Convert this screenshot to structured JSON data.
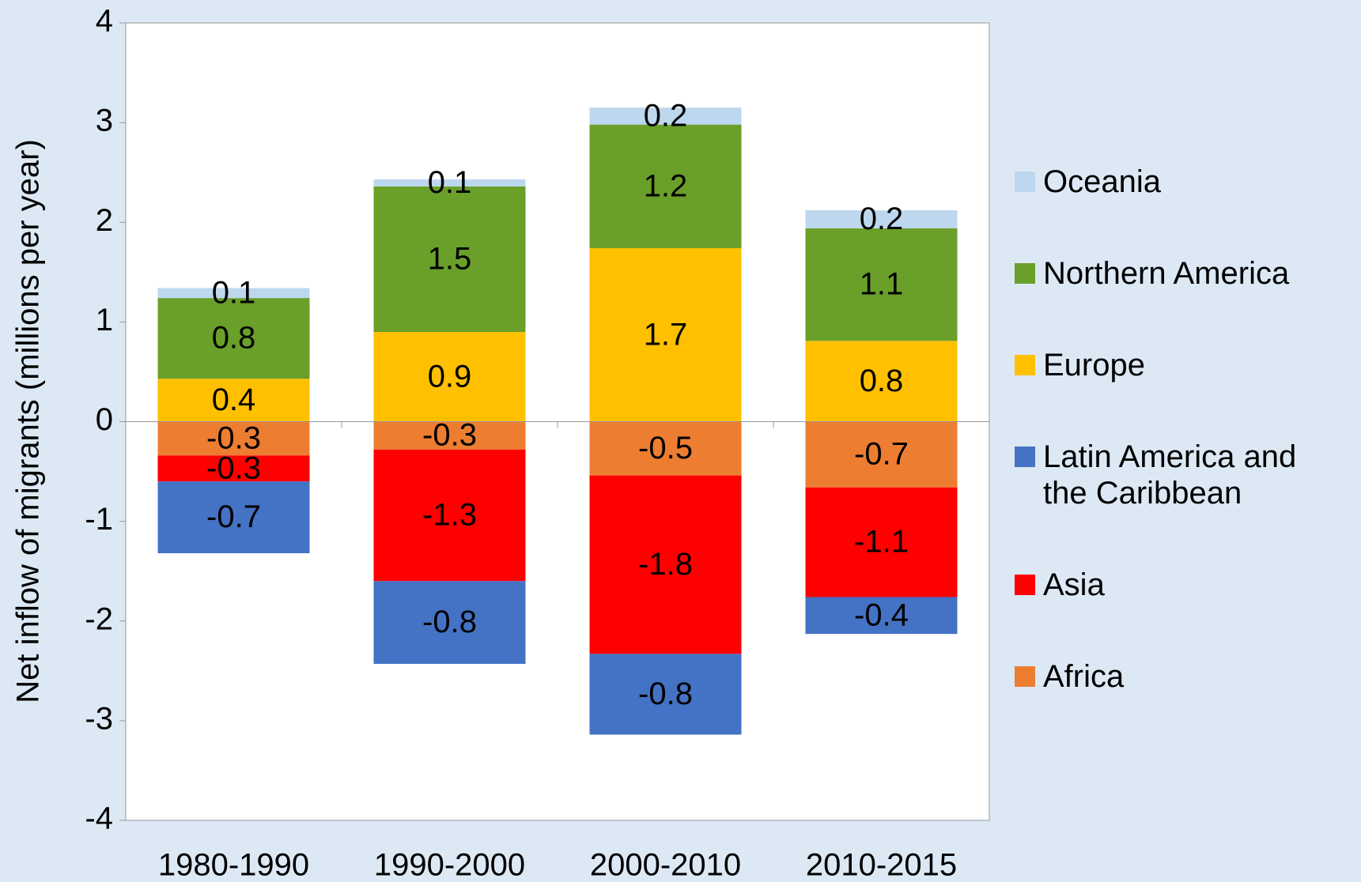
{
  "chart_data": {
    "type": "stacked_bar",
    "y_label": "Net inflow of migrants (millions per year)",
    "categories": [
      "1980-1990",
      "1990-2000",
      "2000-2010",
      "2010-2015"
    ],
    "series": [
      {
        "name": "Africa",
        "color": "#ed7d31",
        "values": [
          -0.34,
          -0.28,
          -0.54,
          -0.66
        ],
        "value_labels": [
          "-0.3",
          "-0.3",
          "-0.5",
          "-0.7"
        ]
      },
      {
        "name": "Asia",
        "color": "#ff0000",
        "values": [
          -0.26,
          -1.32,
          -1.79,
          -1.1
        ],
        "value_labels": [
          "-0.3",
          "-1.3",
          "-1.8",
          "-1.1"
        ]
      },
      {
        "name": "Latin America and the Caribbean",
        "color": "#4472c4",
        "values": [
          -0.72,
          -0.83,
          -0.81,
          -0.37
        ],
        "value_labels": [
          "-0.7",
          "-0.8",
          "-0.8",
          "-0.4"
        ]
      },
      {
        "name": "Europe",
        "color": "#ffc000",
        "values": [
          0.43,
          0.9,
          1.74,
          0.81
        ],
        "value_labels": [
          "0.4",
          "0.9",
          "1.7",
          "0.8"
        ]
      },
      {
        "name": "Northern America",
        "color": "#6a9f2a",
        "values": [
          0.81,
          1.46,
          1.24,
          1.13
        ],
        "value_labels": [
          "0.8",
          "1.5",
          "1.2",
          "1.1"
        ]
      },
      {
        "name": "Oceania",
        "color": "#bdd7ee",
        "values": [
          0.1,
          0.07,
          0.17,
          0.18
        ],
        "value_labels": [
          "0.1",
          "0.1",
          "0.2",
          "0.2"
        ]
      }
    ],
    "ylim": [
      -4,
      4
    ],
    "yticks": [
      -4,
      -3,
      -2,
      -1,
      0,
      1,
      2,
      3,
      4
    ],
    "grid": false,
    "legend": "right"
  }
}
